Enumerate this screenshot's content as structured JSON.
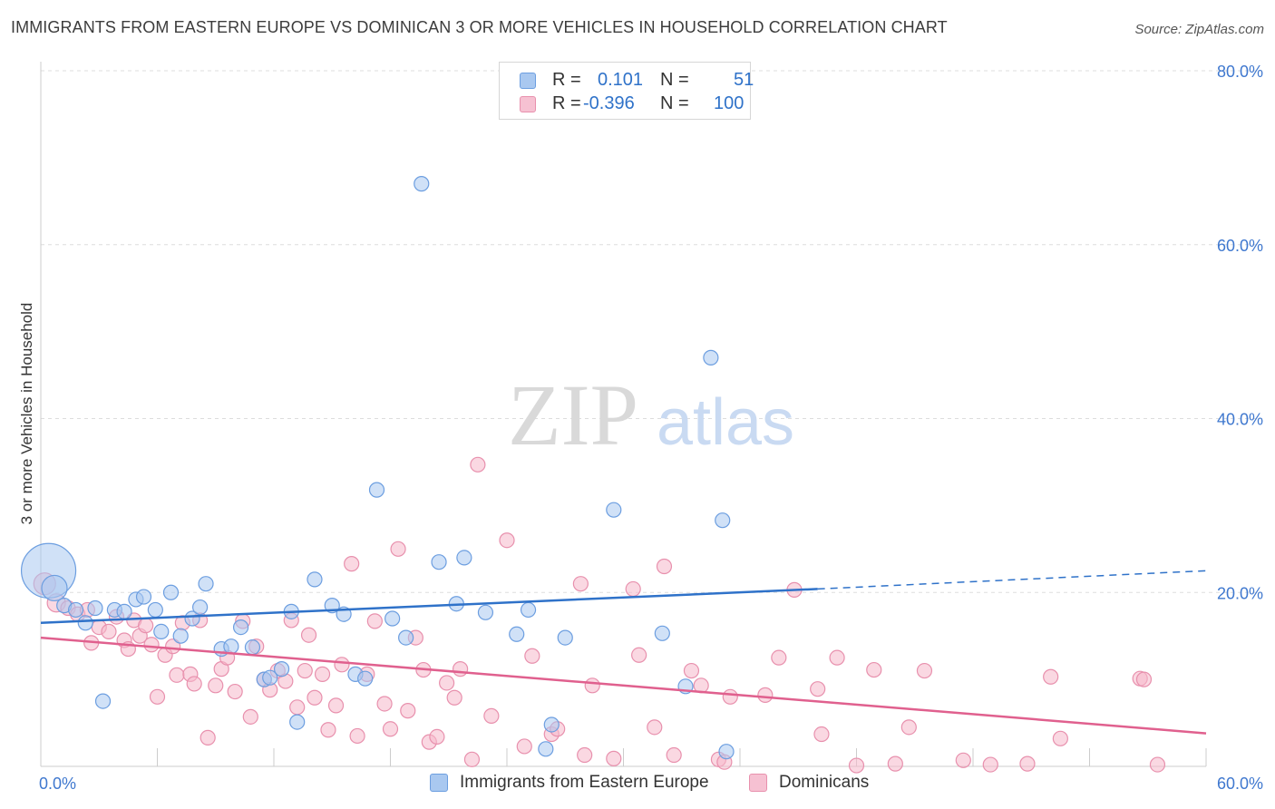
{
  "title": "IMMIGRANTS FROM EASTERN EUROPE VS DOMINICAN 3 OR MORE VEHICLES IN HOUSEHOLD CORRELATION CHART",
  "source": "Source: ZipAtlas.com",
  "watermark": {
    "zip": "ZIP",
    "atlas": "atlas"
  },
  "legend_top": {
    "rows": [
      {
        "r_label": "R =",
        "r_value": "0.101",
        "n_label": "N =",
        "n_value": "51",
        "color": "#6ea0e0"
      },
      {
        "r_label": "R =",
        "r_value": "-0.396",
        "n_label": "N =",
        "n_value": "100",
        "color": "#e88aab"
      }
    ]
  },
  "legend_bottom": {
    "series1": "Immigrants from Eastern Europe",
    "series2": "Dominicans"
  },
  "colors": {
    "blue_fill": "#a9c8f0",
    "blue_stroke": "#6c9ee0",
    "blue_line": "#2f72c9",
    "pink_fill": "#f6b8cb",
    "pink_stroke": "#e890ad",
    "pink_line": "#e0608e",
    "tick_text": "#3f78cf",
    "grid": "#dddddd"
  },
  "chart_data": {
    "type": "scatter",
    "ylabel": "3 or more Vehicles in Household",
    "xlabel": "",
    "xlim": [
      0,
      60
    ],
    "ylim": [
      0,
      80
    ],
    "x_ticks": [
      0,
      60
    ],
    "x_tick_labels": [
      "0.0%",
      "60.0%"
    ],
    "y_ticks": [
      20,
      40,
      60,
      80
    ],
    "y_tick_labels": [
      "20.0%",
      "40.0%",
      "60.0%",
      "80.0%"
    ],
    "grid": true,
    "series": [
      {
        "name": "Immigrants from Eastern Europe",
        "color": "#6c9ee0",
        "points": [
          [
            0.4,
            22.5
          ],
          [
            0.7,
            20.5
          ],
          [
            1.2,
            18.5
          ],
          [
            1.8,
            18.0
          ],
          [
            2.3,
            16.5
          ],
          [
            2.8,
            18.2
          ],
          [
            3.2,
            7.5
          ],
          [
            3.8,
            18.0
          ],
          [
            4.3,
            17.8
          ],
          [
            4.9,
            19.2
          ],
          [
            5.3,
            19.5
          ],
          [
            5.9,
            18.0
          ],
          [
            6.2,
            15.5
          ],
          [
            6.7,
            20.0
          ],
          [
            7.2,
            15.0
          ],
          [
            7.8,
            17.0
          ],
          [
            8.2,
            18.3
          ],
          [
            8.5,
            21.0
          ],
          [
            9.3,
            13.5
          ],
          [
            9.8,
            13.8
          ],
          [
            10.3,
            16.0
          ],
          [
            10.9,
            13.7
          ],
          [
            11.5,
            10.0
          ],
          [
            11.8,
            10.2
          ],
          [
            12.4,
            11.2
          ],
          [
            12.9,
            17.8
          ],
          [
            13.2,
            5.1
          ],
          [
            14.1,
            21.5
          ],
          [
            15.0,
            18.5
          ],
          [
            15.6,
            17.5
          ],
          [
            16.2,
            10.6
          ],
          [
            16.7,
            10.1
          ],
          [
            17.3,
            31.8
          ],
          [
            18.1,
            17.0
          ],
          [
            18.8,
            14.8
          ],
          [
            19.6,
            67.0
          ],
          [
            20.5,
            23.5
          ],
          [
            21.4,
            18.7
          ],
          [
            21.8,
            24.0
          ],
          [
            22.9,
            17.7
          ],
          [
            24.5,
            15.2
          ],
          [
            25.1,
            18.0
          ],
          [
            26.0,
            2.0
          ],
          [
            26.3,
            4.8
          ],
          [
            27.0,
            14.8
          ],
          [
            29.5,
            29.5
          ],
          [
            32.0,
            15.3
          ],
          [
            33.2,
            9.2
          ],
          [
            34.5,
            47.0
          ],
          [
            35.1,
            28.3
          ],
          [
            35.3,
            1.7
          ]
        ],
        "sizes": [
          30,
          14,
          8,
          8,
          8,
          8,
          8,
          8,
          8,
          8,
          8,
          8,
          8,
          8,
          8,
          8,
          8,
          8,
          8,
          8,
          8,
          8,
          8,
          8,
          8,
          8,
          8,
          8,
          8,
          8,
          8,
          8,
          8,
          8,
          8,
          8,
          8,
          8,
          8,
          8,
          8,
          8,
          8,
          8,
          8,
          8,
          8,
          8,
          8,
          8,
          8
        ],
        "trend": {
          "x0": 0,
          "y0": 16.5,
          "x1": 40,
          "y1": 20.4,
          "dash_x1": 60,
          "dash_y1": 22.5
        }
      },
      {
        "name": "Dominicans",
        "color": "#e890ad",
        "points": [
          [
            0.2,
            21.0
          ],
          [
            0.8,
            18.8
          ],
          [
            1.4,
            18.2
          ],
          [
            1.9,
            17.5
          ],
          [
            2.4,
            18.0
          ],
          [
            2.6,
            14.2
          ],
          [
            3.0,
            16.0
          ],
          [
            3.5,
            15.5
          ],
          [
            3.9,
            17.2
          ],
          [
            4.3,
            14.5
          ],
          [
            4.5,
            13.5
          ],
          [
            4.8,
            16.8
          ],
          [
            5.1,
            15.0
          ],
          [
            5.4,
            16.2
          ],
          [
            5.7,
            14.0
          ],
          [
            6.0,
            8.0
          ],
          [
            6.4,
            12.8
          ],
          [
            6.8,
            13.8
          ],
          [
            7.0,
            10.5
          ],
          [
            7.3,
            16.5
          ],
          [
            7.7,
            10.6
          ],
          [
            7.9,
            9.5
          ],
          [
            8.2,
            16.8
          ],
          [
            8.6,
            3.3
          ],
          [
            9.0,
            9.3
          ],
          [
            9.3,
            11.2
          ],
          [
            9.6,
            12.5
          ],
          [
            10.0,
            8.6
          ],
          [
            10.4,
            16.7
          ],
          [
            10.8,
            5.7
          ],
          [
            11.1,
            13.8
          ],
          [
            11.5,
            10.0
          ],
          [
            11.8,
            8.8
          ],
          [
            12.2,
            11.0
          ],
          [
            12.6,
            9.8
          ],
          [
            12.9,
            16.8
          ],
          [
            13.2,
            6.8
          ],
          [
            13.6,
            11.0
          ],
          [
            13.8,
            15.1
          ],
          [
            14.1,
            7.9
          ],
          [
            14.5,
            10.6
          ],
          [
            14.8,
            4.2
          ],
          [
            15.2,
            7.0
          ],
          [
            15.5,
            11.7
          ],
          [
            16.0,
            23.3
          ],
          [
            16.3,
            3.5
          ],
          [
            16.8,
            10.6
          ],
          [
            17.2,
            16.7
          ],
          [
            17.7,
            7.2
          ],
          [
            18.0,
            4.3
          ],
          [
            18.4,
            25.0
          ],
          [
            18.9,
            6.4
          ],
          [
            19.3,
            14.8
          ],
          [
            19.7,
            11.1
          ],
          [
            20.0,
            2.8
          ],
          [
            20.4,
            3.4
          ],
          [
            20.9,
            9.6
          ],
          [
            21.3,
            7.9
          ],
          [
            21.6,
            11.2
          ],
          [
            22.2,
            0.8
          ],
          [
            22.5,
            34.7
          ],
          [
            23.2,
            5.8
          ],
          [
            24.0,
            26.0
          ],
          [
            24.9,
            2.3
          ],
          [
            25.3,
            12.7
          ],
          [
            26.3,
            3.7
          ],
          [
            26.6,
            4.3
          ],
          [
            27.8,
            21.0
          ],
          [
            28.0,
            1.3
          ],
          [
            28.4,
            9.3
          ],
          [
            29.5,
            0.9
          ],
          [
            30.5,
            20.4
          ],
          [
            30.8,
            12.8
          ],
          [
            31.6,
            4.5
          ],
          [
            32.1,
            23.0
          ],
          [
            32.6,
            1.3
          ],
          [
            33.5,
            11.0
          ],
          [
            34.0,
            9.3
          ],
          [
            34.9,
            0.8
          ],
          [
            35.2,
            0.5
          ],
          [
            35.5,
            8.0
          ],
          [
            37.3,
            8.2
          ],
          [
            38.0,
            12.5
          ],
          [
            38.8,
            20.3
          ],
          [
            40.0,
            8.9
          ],
          [
            40.2,
            3.7
          ],
          [
            41.0,
            12.5
          ],
          [
            42.0,
            0.1
          ],
          [
            42.9,
            11.1
          ],
          [
            44.0,
            0.3
          ],
          [
            44.7,
            4.5
          ],
          [
            45.5,
            11.0
          ],
          [
            47.5,
            0.7
          ],
          [
            48.9,
            0.2
          ],
          [
            50.8,
            0.3
          ],
          [
            52.0,
            10.3
          ],
          [
            52.5,
            3.2
          ],
          [
            56.6,
            10.1
          ],
          [
            56.8,
            10.0
          ],
          [
            57.5,
            0.2
          ]
        ],
        "sizes": [
          12,
          10,
          8,
          8,
          8,
          8,
          8,
          8,
          8,
          8,
          8,
          8,
          8,
          8,
          8,
          8,
          8,
          8,
          8,
          8,
          8,
          8,
          8,
          8,
          8,
          8,
          8,
          8,
          8,
          8,
          8,
          8,
          8,
          8,
          8,
          8,
          8,
          8,
          8,
          8,
          8,
          8,
          8,
          8,
          8,
          8,
          8,
          8,
          8,
          8,
          8,
          8,
          8,
          8,
          8,
          8,
          8,
          8,
          8,
          8,
          8,
          8,
          8,
          8,
          8,
          8,
          8,
          8,
          8,
          8,
          8,
          8,
          8,
          8,
          8,
          8,
          8,
          8,
          8,
          8,
          8,
          8,
          8,
          8,
          8,
          8,
          8,
          8,
          8,
          8,
          8,
          8,
          8,
          8,
          8,
          8,
          8,
          8,
          8,
          8
        ],
        "trend": {
          "x0": 0,
          "y0": 14.8,
          "x1": 60,
          "y1": 3.8
        }
      }
    ]
  }
}
